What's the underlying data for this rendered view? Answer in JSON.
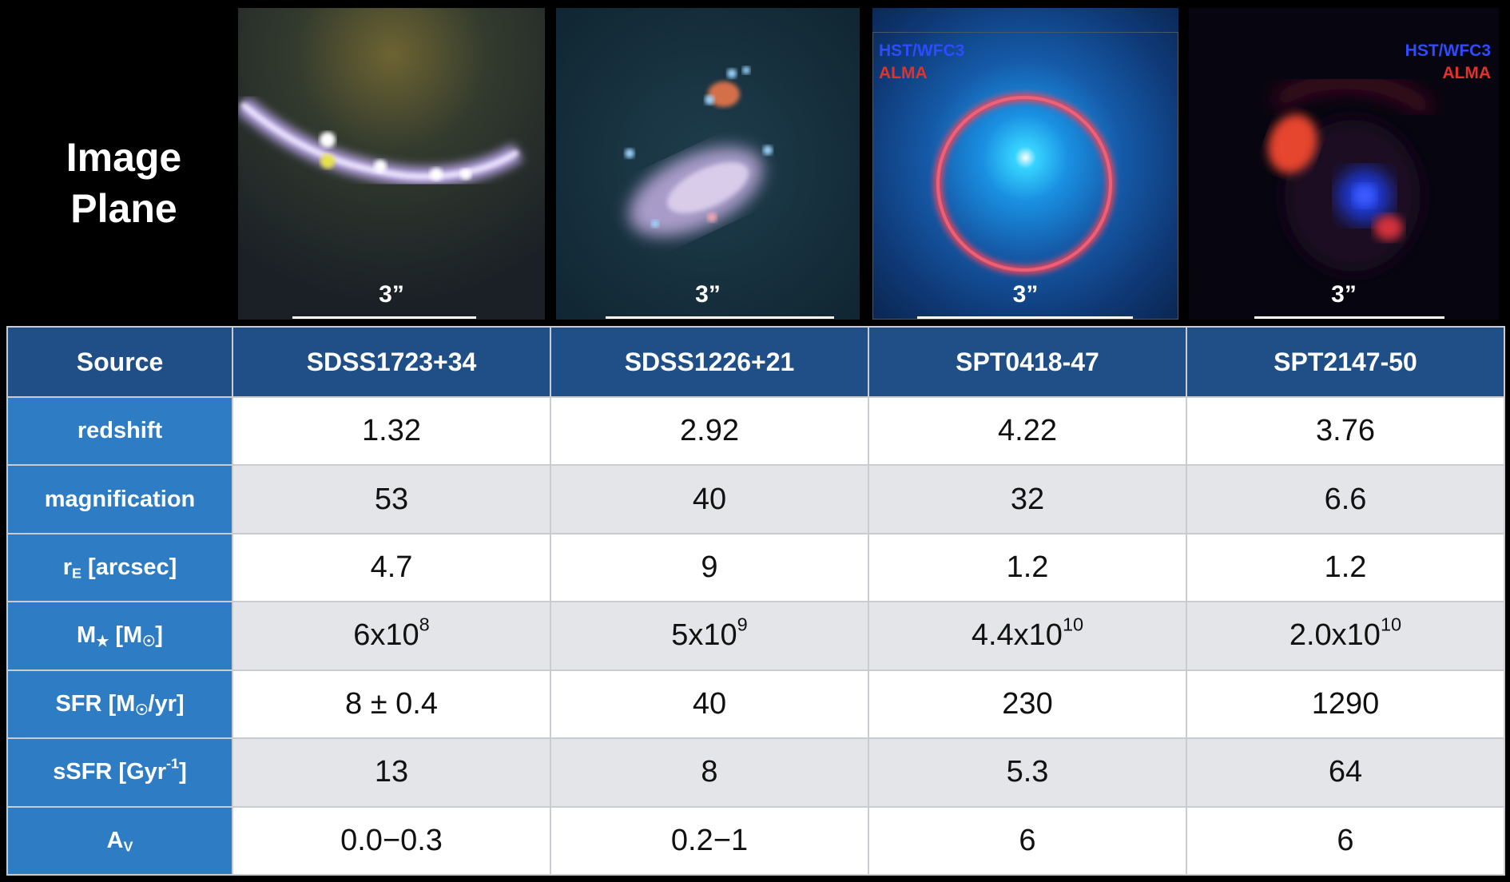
{
  "header": {
    "title_line1": "Image",
    "title_line2": "Plane"
  },
  "panels": [
    {
      "scale_label": "3”"
    },
    {
      "scale_label": "3”"
    },
    {
      "scale_label": "3”",
      "tag_blue": "HST/WFC3",
      "tag_red": "ALMA"
    },
    {
      "scale_label": "3”",
      "tag_blue": "HST/WFC3",
      "tag_red": "ALMA"
    }
  ],
  "table": {
    "corner_header": "Source",
    "columns": [
      "SDSS1723+34",
      "SDSS1226+21",
      "SPT0418-47",
      "SPT2147-50"
    ],
    "row_labels": {
      "redshift": "redshift",
      "magnification": "magnification",
      "re_main": "r",
      "re_sub": "E",
      "re_rest": " [arcsec]",
      "mstar_main": "M",
      "mstar_star": "★",
      "mstar_open": " [M",
      "mstar_sun": "☉",
      "mstar_close": "]",
      "sfr_open": "SFR [M",
      "sfr_sun": "☉",
      "sfr_close": "/yr]",
      "ssfr_main": "sSFR [Gyr",
      "ssfr_sup": "-1",
      "ssfr_close": "]",
      "av_main": "A",
      "av_sub": "V"
    },
    "redshift": [
      "1.32",
      "2.92",
      "4.22",
      "3.76"
    ],
    "magnification": [
      "53",
      "40",
      "32",
      "6.6"
    ],
    "re_arcsec": [
      "4.7",
      "9",
      "1.2",
      "1.2"
    ],
    "mstar": [
      {
        "base": "6x10",
        "exp": "8"
      },
      {
        "base": "5x10",
        "exp": "9"
      },
      {
        "base": "4.4x10",
        "exp": "10"
      },
      {
        "base": "2.0x10",
        "exp": "10"
      }
    ],
    "sfr": [
      "8 ± 0.4",
      "40",
      "230",
      "1290"
    ],
    "ssfr": [
      "13",
      "8",
      "5.3",
      "64"
    ],
    "av": [
      "0.0−0.3",
      "0.2−1",
      "6",
      "6"
    ]
  }
}
